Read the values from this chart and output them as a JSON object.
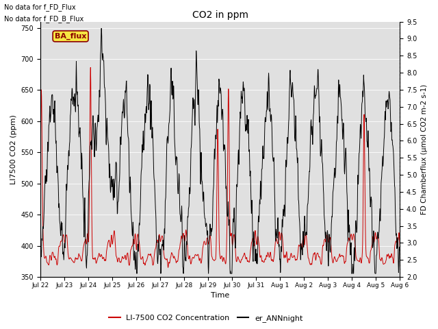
{
  "title": "CO2 in ppm",
  "xlabel": "Time",
  "ylabel_left": "LI7500 CO2 (ppm)",
  "ylabel_right": "FD Chamberflux (μmol CO2 m-2 s-1)",
  "ylim_left": [
    350,
    760
  ],
  "ylim_right": [
    2.0,
    9.5
  ],
  "yticks_left": [
    350,
    400,
    450,
    500,
    550,
    600,
    650,
    700,
    750
  ],
  "yticks_right": [
    2.0,
    2.5,
    3.0,
    3.5,
    4.0,
    4.5,
    5.0,
    5.5,
    6.0,
    6.5,
    7.0,
    7.5,
    8.0,
    8.5,
    9.0,
    9.5
  ],
  "xtick_labels": [
    "Jul 22",
    "Jul 23",
    "Jul 24",
    "Jul 25",
    "Jul 26",
    "Jul 27",
    "Jul 28",
    "Jul 29",
    "Jul 30",
    "Jul 31",
    "Aug 1",
    "Aug 2",
    "Aug 3",
    "Aug 4",
    "Aug 5",
    "Aug 6"
  ],
  "text_line1": "No data for f_FD_Flux",
  "text_line2": "No data for f_FD_B_Flux",
  "legend_label_red": "LI-7500 CO2 Concentration",
  "legend_label_black": "er_ANNnight",
  "ba_flux_label": "BA_flux",
  "background_color": "#e0e0e0",
  "red_color": "#cc0000",
  "black_color": "#000000",
  "figsize": [
    6.4,
    4.8
  ],
  "dpi": 100
}
